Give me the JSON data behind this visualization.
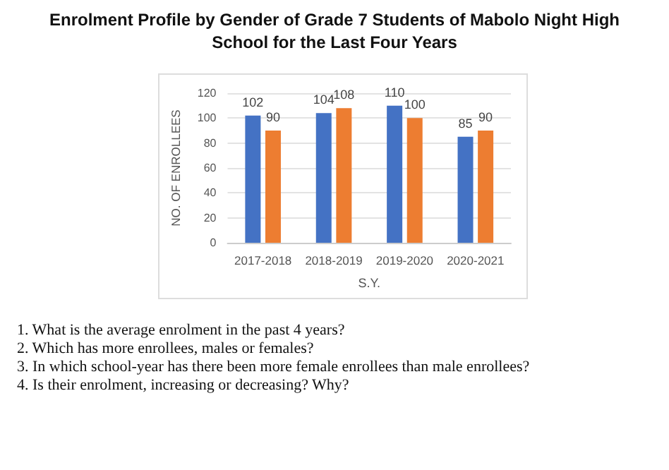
{
  "chart_data": {
    "type": "bar",
    "title": "Enrolment Profile by Gender of Grade 7 Students of Mabolo Night High School for the Last Four Years",
    "xlabel": "S.Y.",
    "ylabel": "NO. OF ENROLLEES",
    "categories": [
      "2017-2018",
      "2018-2019",
      "2019-2020",
      "2020-2021"
    ],
    "series": [
      {
        "color": "#4472c4",
        "values": [
          102,
          104,
          110,
          85
        ]
      },
      {
        "color": "#ed7d31",
        "values": [
          90,
          108,
          100,
          90
        ]
      }
    ],
    "ylim": [
      0,
      120
    ],
    "yticks": [
      0,
      20,
      40,
      60,
      80,
      100,
      120
    ],
    "grid": "y",
    "data_labels": true,
    "annotations": [
      "1. What is the average enrolment in the past 4 years?",
      "2. Which has more enrollees, males or females?",
      "3. In which school-year has there been more female enrollees than male enrollees?",
      "4. Is their enrolment, increasing or decreasing? Why?"
    ]
  }
}
